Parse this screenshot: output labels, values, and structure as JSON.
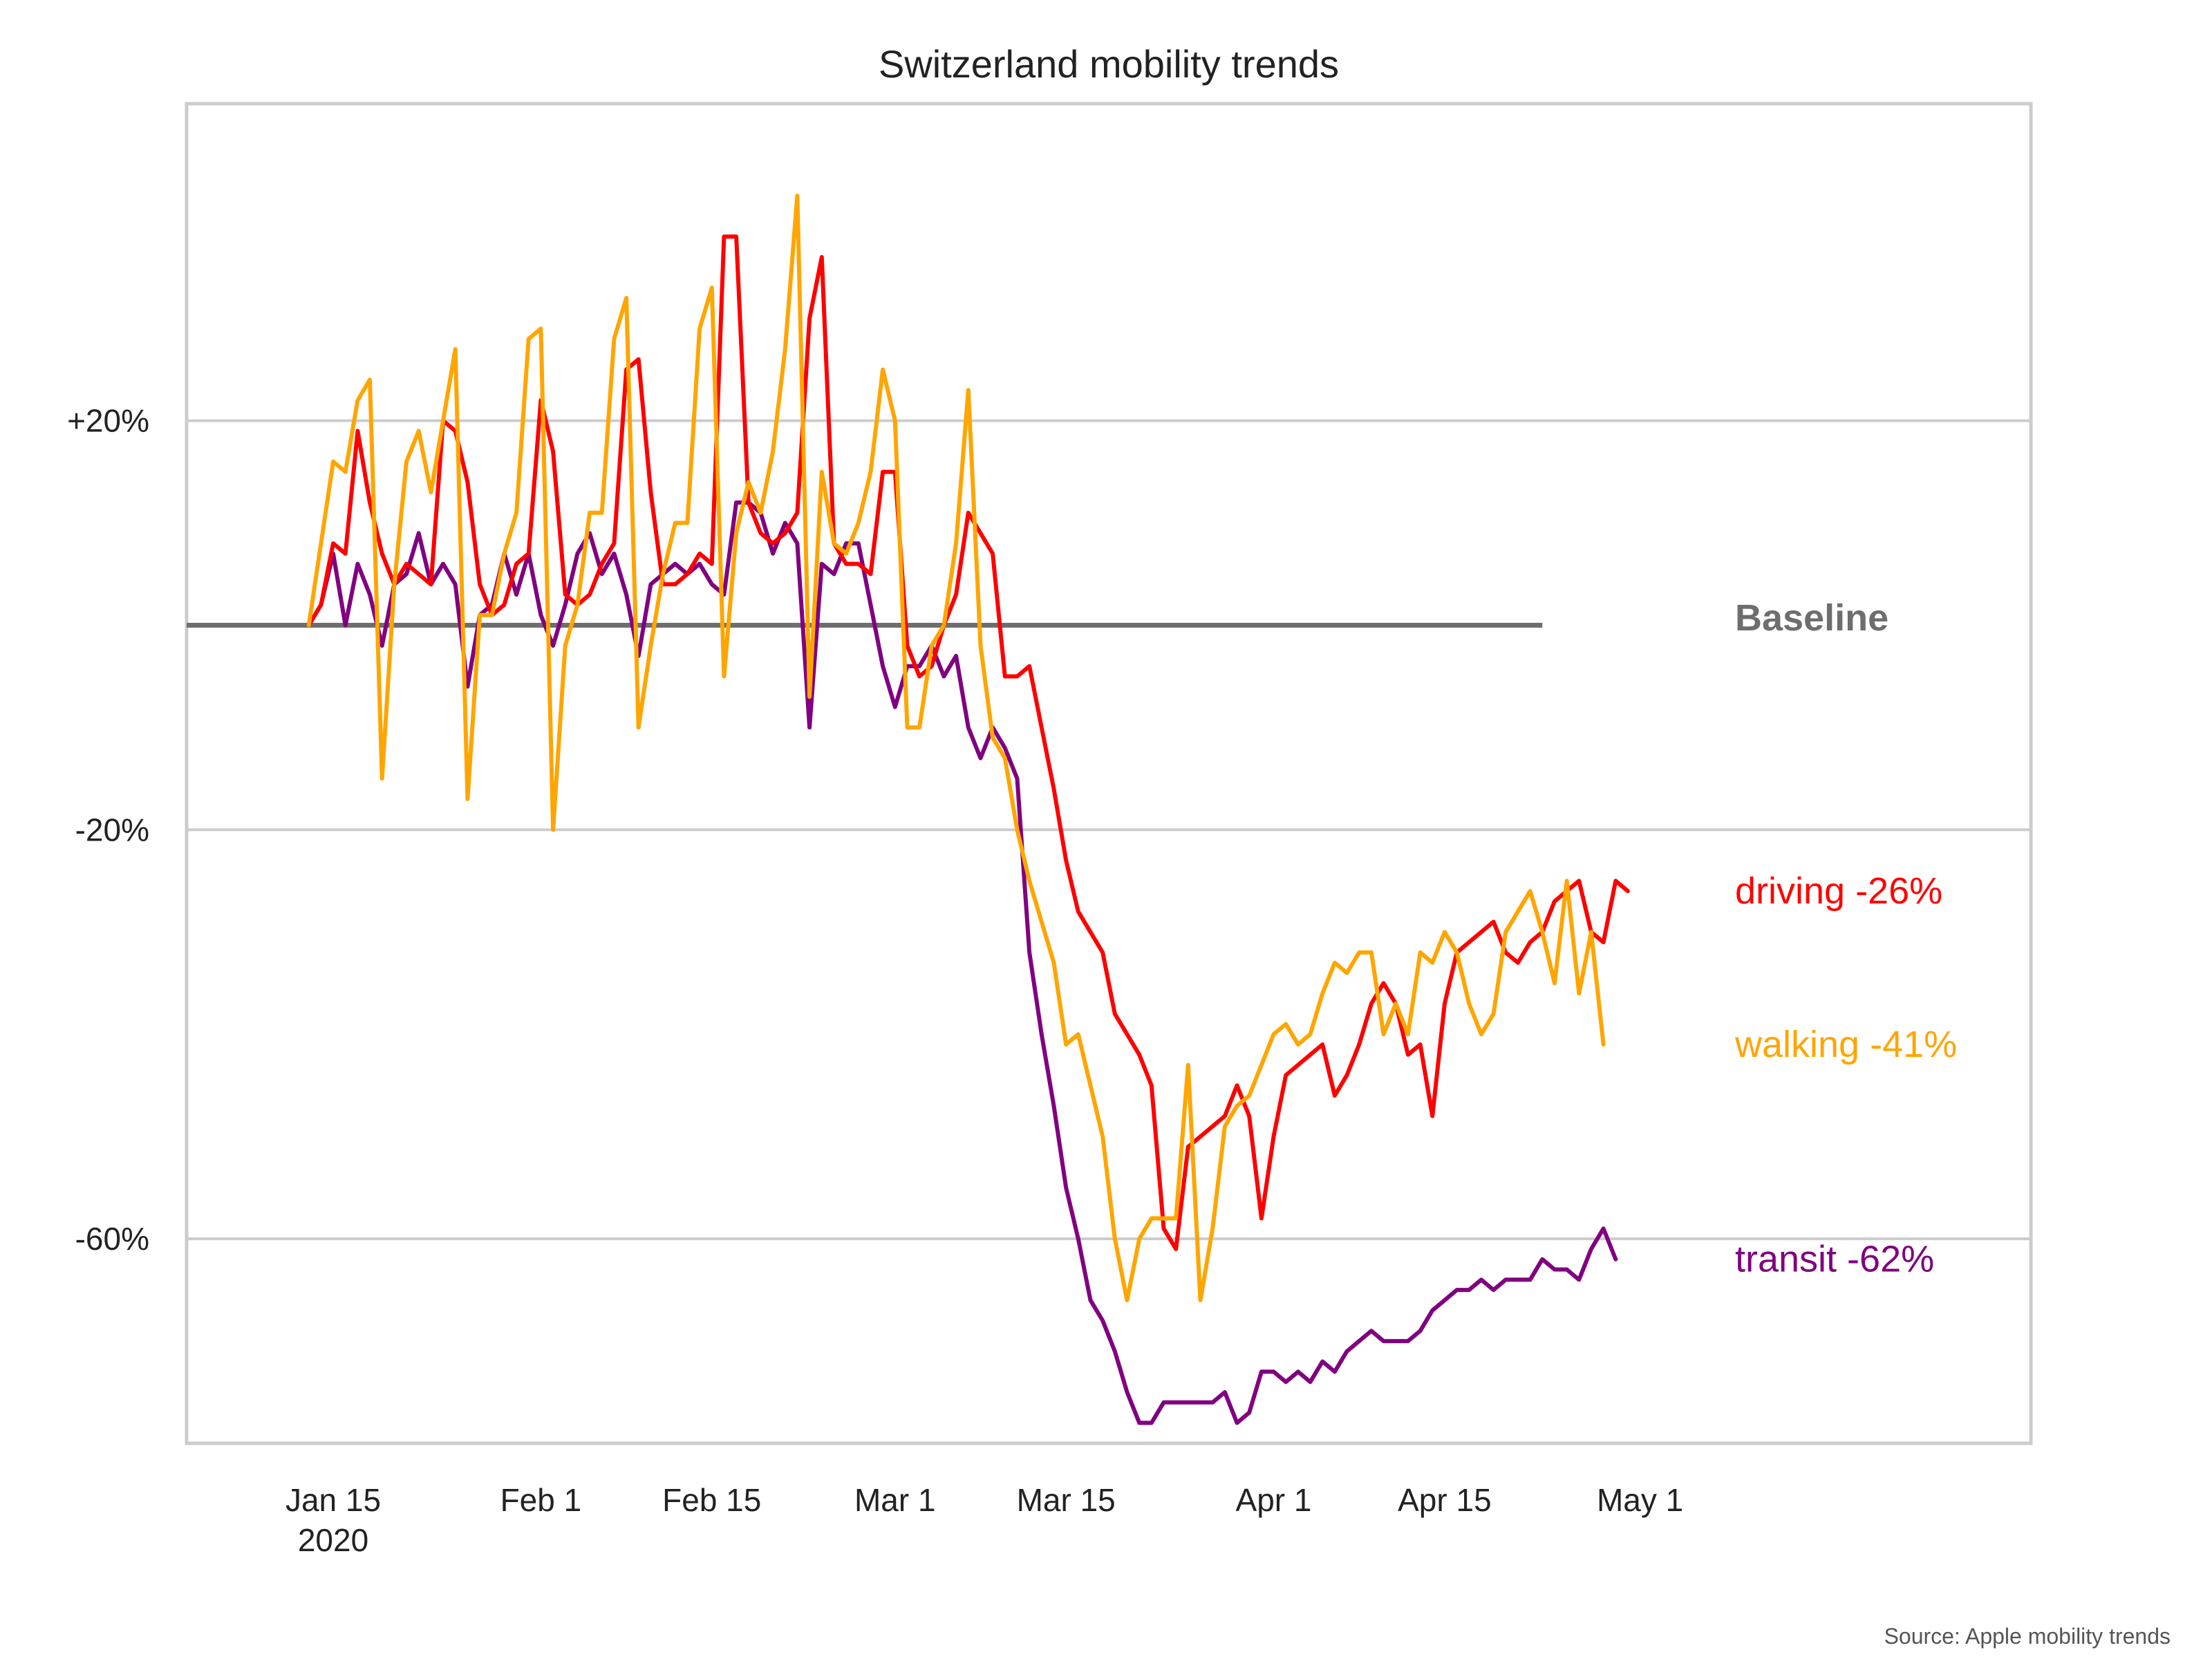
{
  "chart_data": {
    "type": "line",
    "title": "Switzerland mobility trends",
    "source": "Source: Apple mobility trends",
    "baseline_label": "Baseline",
    "x_ticks": [
      {
        "date": "2020-01-15",
        "label": "Jan 15",
        "sublabel": "2020"
      },
      {
        "date": "2020-02-01",
        "label": "Feb 1",
        "sublabel": ""
      },
      {
        "date": "2020-02-15",
        "label": "Feb 15",
        "sublabel": ""
      },
      {
        "date": "2020-03-01",
        "label": "Mar 1",
        "sublabel": ""
      },
      {
        "date": "2020-03-15",
        "label": "Mar 15",
        "sublabel": ""
      },
      {
        "date": "2020-04-01",
        "label": "Apr 1",
        "sublabel": ""
      },
      {
        "date": "2020-04-15",
        "label": "Apr 15",
        "sublabel": ""
      },
      {
        "date": "2020-05-01",
        "label": "May 1",
        "sublabel": ""
      }
    ],
    "y_ticks": [
      {
        "value": 20,
        "label": "+20%"
      },
      {
        "value": -20,
        "label": "-20%"
      },
      {
        "value": -60,
        "label": "-60%"
      }
    ],
    "xlim": [
      "2020-01-03",
      "2020-06-02"
    ],
    "ylim": [
      -80,
      51
    ],
    "grid": true,
    "baseline": {
      "value": 0,
      "from": "2020-01-13",
      "to": "2020-04-23",
      "color": "#6e6e6e"
    },
    "start_date": "2020-01-13",
    "series": [
      {
        "name": "driving",
        "end_label": "driving -26%",
        "color": "#ff0000",
        "values": [
          0,
          2,
          8,
          7,
          19,
          12,
          7,
          4,
          6,
          5,
          4,
          20,
          19,
          14,
          4,
          1,
          2,
          6,
          7,
          22,
          17,
          3,
          2,
          3,
          6,
          8,
          25,
          26,
          13,
          4,
          4,
          5,
          7,
          6,
          38,
          38,
          12,
          9,
          8,
          9,
          11,
          30,
          36,
          8,
          6,
          6,
          5,
          15,
          15,
          -2,
          -5,
          -4,
          0,
          3,
          11,
          9,
          7,
          -5,
          -5,
          -4,
          -10,
          -16,
          -23,
          -28,
          -30,
          -32,
          -38,
          -40,
          -42,
          -45,
          -59,
          -61,
          -51,
          -50,
          -49,
          -48,
          -45,
          -48,
          -58,
          -50,
          -44,
          -43,
          -42,
          -41,
          -46,
          -44,
          -41,
          -37,
          -35,
          -37,
          -42,
          -41,
          -48,
          -37,
          -32,
          -31,
          -30,
          -29,
          -32,
          -33,
          -31,
          -30,
          -27,
          -26,
          -25,
          -30,
          -31,
          -25,
          -26
        ]
      },
      {
        "name": "walking",
        "end_label": "walking -41%",
        "color": "#ffa500",
        "values": [
          0,
          8,
          16,
          15,
          22,
          24,
          -15,
          4,
          16,
          19,
          13,
          20,
          27,
          -17,
          1,
          1,
          7,
          11,
          28,
          29,
          -20,
          -2,
          2,
          11,
          11,
          28,
          32,
          -10,
          -2,
          5,
          10,
          10,
          29,
          33,
          -5,
          9,
          14,
          11,
          17,
          27,
          42,
          -7,
          15,
          8,
          7,
          10,
          15,
          25,
          20,
          -10,
          -10,
          -2,
          0,
          8,
          23,
          -2,
          -11,
          -13,
          -20,
          -25,
          -29,
          -33,
          -41,
          -40,
          -45,
          -50,
          -60,
          -66,
          -60,
          -58,
          -58,
          -58,
          -43,
          -66,
          -59,
          -49,
          -47,
          -46,
          -43,
          -40,
          -39,
          -41,
          -40,
          -36,
          -33,
          -34,
          -32,
          -32,
          -40,
          -37,
          -40,
          -32,
          -33,
          -30,
          -32,
          -37,
          -40,
          -38,
          -30,
          -28,
          -26,
          -30,
          -35,
          -25,
          -36,
          -30,
          -41
        ]
      },
      {
        "name": "transit",
        "end_label": "transit -62%",
        "color": "#800080",
        "values": [
          0,
          2,
          7,
          0,
          6,
          3,
          -2,
          4,
          5,
          9,
          4,
          6,
          4,
          -6,
          1,
          2,
          7,
          3,
          7,
          1,
          -2,
          2,
          7,
          9,
          5,
          7,
          3,
          -3,
          4,
          5,
          6,
          5,
          6,
          4,
          3,
          12,
          12,
          11,
          7,
          10,
          8,
          -10,
          6,
          5,
          8,
          8,
          2,
          -4,
          -8,
          -4,
          -4,
          -2,
          -5,
          -3,
          -10,
          -13,
          -10,
          -12,
          -15,
          -32,
          -40,
          -47,
          -55,
          -60,
          -66,
          -68,
          -71,
          -75,
          -78,
          -78,
          -76,
          -76,
          -76,
          -76,
          -76,
          -75,
          -78,
          -77,
          -73,
          -73,
          -74,
          -73,
          -74,
          -72,
          -73,
          -71,
          -70,
          -69,
          -70,
          -70,
          -70,
          -69,
          -67,
          -66,
          -65,
          -65,
          -64,
          -65,
          -64,
          -64,
          -64,
          -62,
          -63,
          -63,
          -64,
          -61,
          -59,
          -62
        ]
      }
    ]
  }
}
